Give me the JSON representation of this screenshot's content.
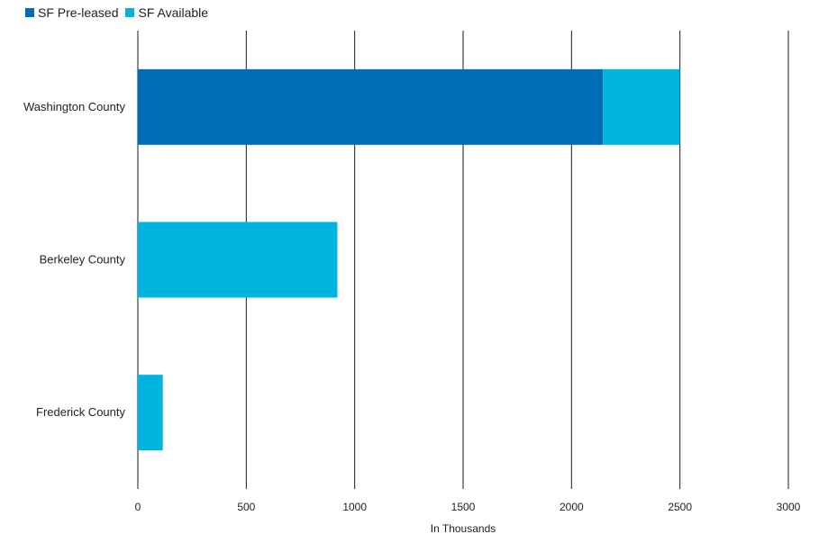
{
  "chart_data": {
    "type": "bar",
    "orientation": "horizontal",
    "stacked": true,
    "categories": [
      "Washington County",
      "Berkeley County",
      "Frederick County"
    ],
    "series": [
      {
        "name": "SF Pre-leased",
        "color": "#006eb6",
        "values": [
          2145,
          0,
          0
        ]
      },
      {
        "name": "SF Available",
        "color": "#00b4e0",
        "values": [
          355,
          920,
          115
        ]
      }
    ],
    "xlabel": "In Thousands",
    "xlim": [
      0,
      3000
    ],
    "xticks": [
      "0",
      "500",
      "1000",
      "1500",
      "2000",
      "2500",
      "3000"
    ],
    "grid": "vertical",
    "legend_position": "top-left"
  }
}
